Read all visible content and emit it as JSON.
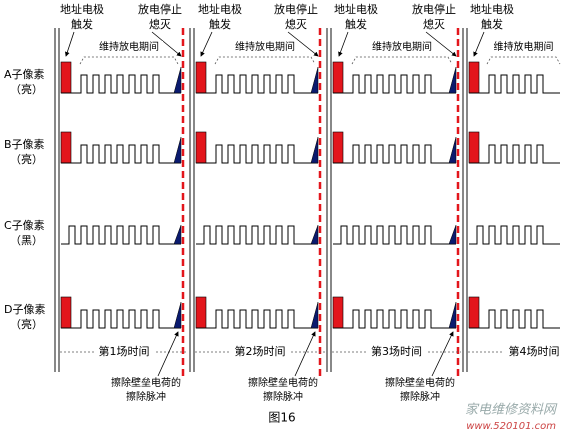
{
  "top_labels": [
    {
      "line1": "地址电极",
      "line2": "触发"
    },
    {
      "line1": "放电停止",
      "line2": "熄灭"
    },
    {
      "line1": "地址电极",
      "line2": "触发"
    },
    {
      "line1": "放电停止",
      "line2": "熄灭"
    },
    {
      "line1": "地址电极",
      "line2": "触发"
    },
    {
      "line1": "放电停止",
      "line2": "熄灭"
    },
    {
      "line1": "地址电极",
      "line2": "触发"
    }
  ],
  "sustain_labels": [
    "维持放电期间",
    "维持放电期间",
    "维持放电期间",
    "维持放电期间"
  ],
  "rows": [
    {
      "name": "A子像素",
      "state": "（亮）"
    },
    {
      "name": "B子像素",
      "state": "（亮）"
    },
    {
      "name": "C子像素",
      "state": "（黑）"
    },
    {
      "name": "D子像素",
      "state": "（亮）"
    }
  ],
  "field_labels": [
    "第1场时间",
    "第2场时间",
    "第3场时间",
    "第4场时间"
  ],
  "erase_labels": [
    {
      "line1": "擦除壁垒电荷的",
      "line2": "擦除脉冲"
    },
    {
      "line1": "擦除壁垒电荷的",
      "line2": "擦除脉冲"
    },
    {
      "line1": "擦除壁垒电荷的",
      "line2": "擦除脉冲"
    }
  ],
  "caption": "图16",
  "watermark": {
    "cn": "家电维修资料网",
    "url": "www.520101.com"
  }
}
